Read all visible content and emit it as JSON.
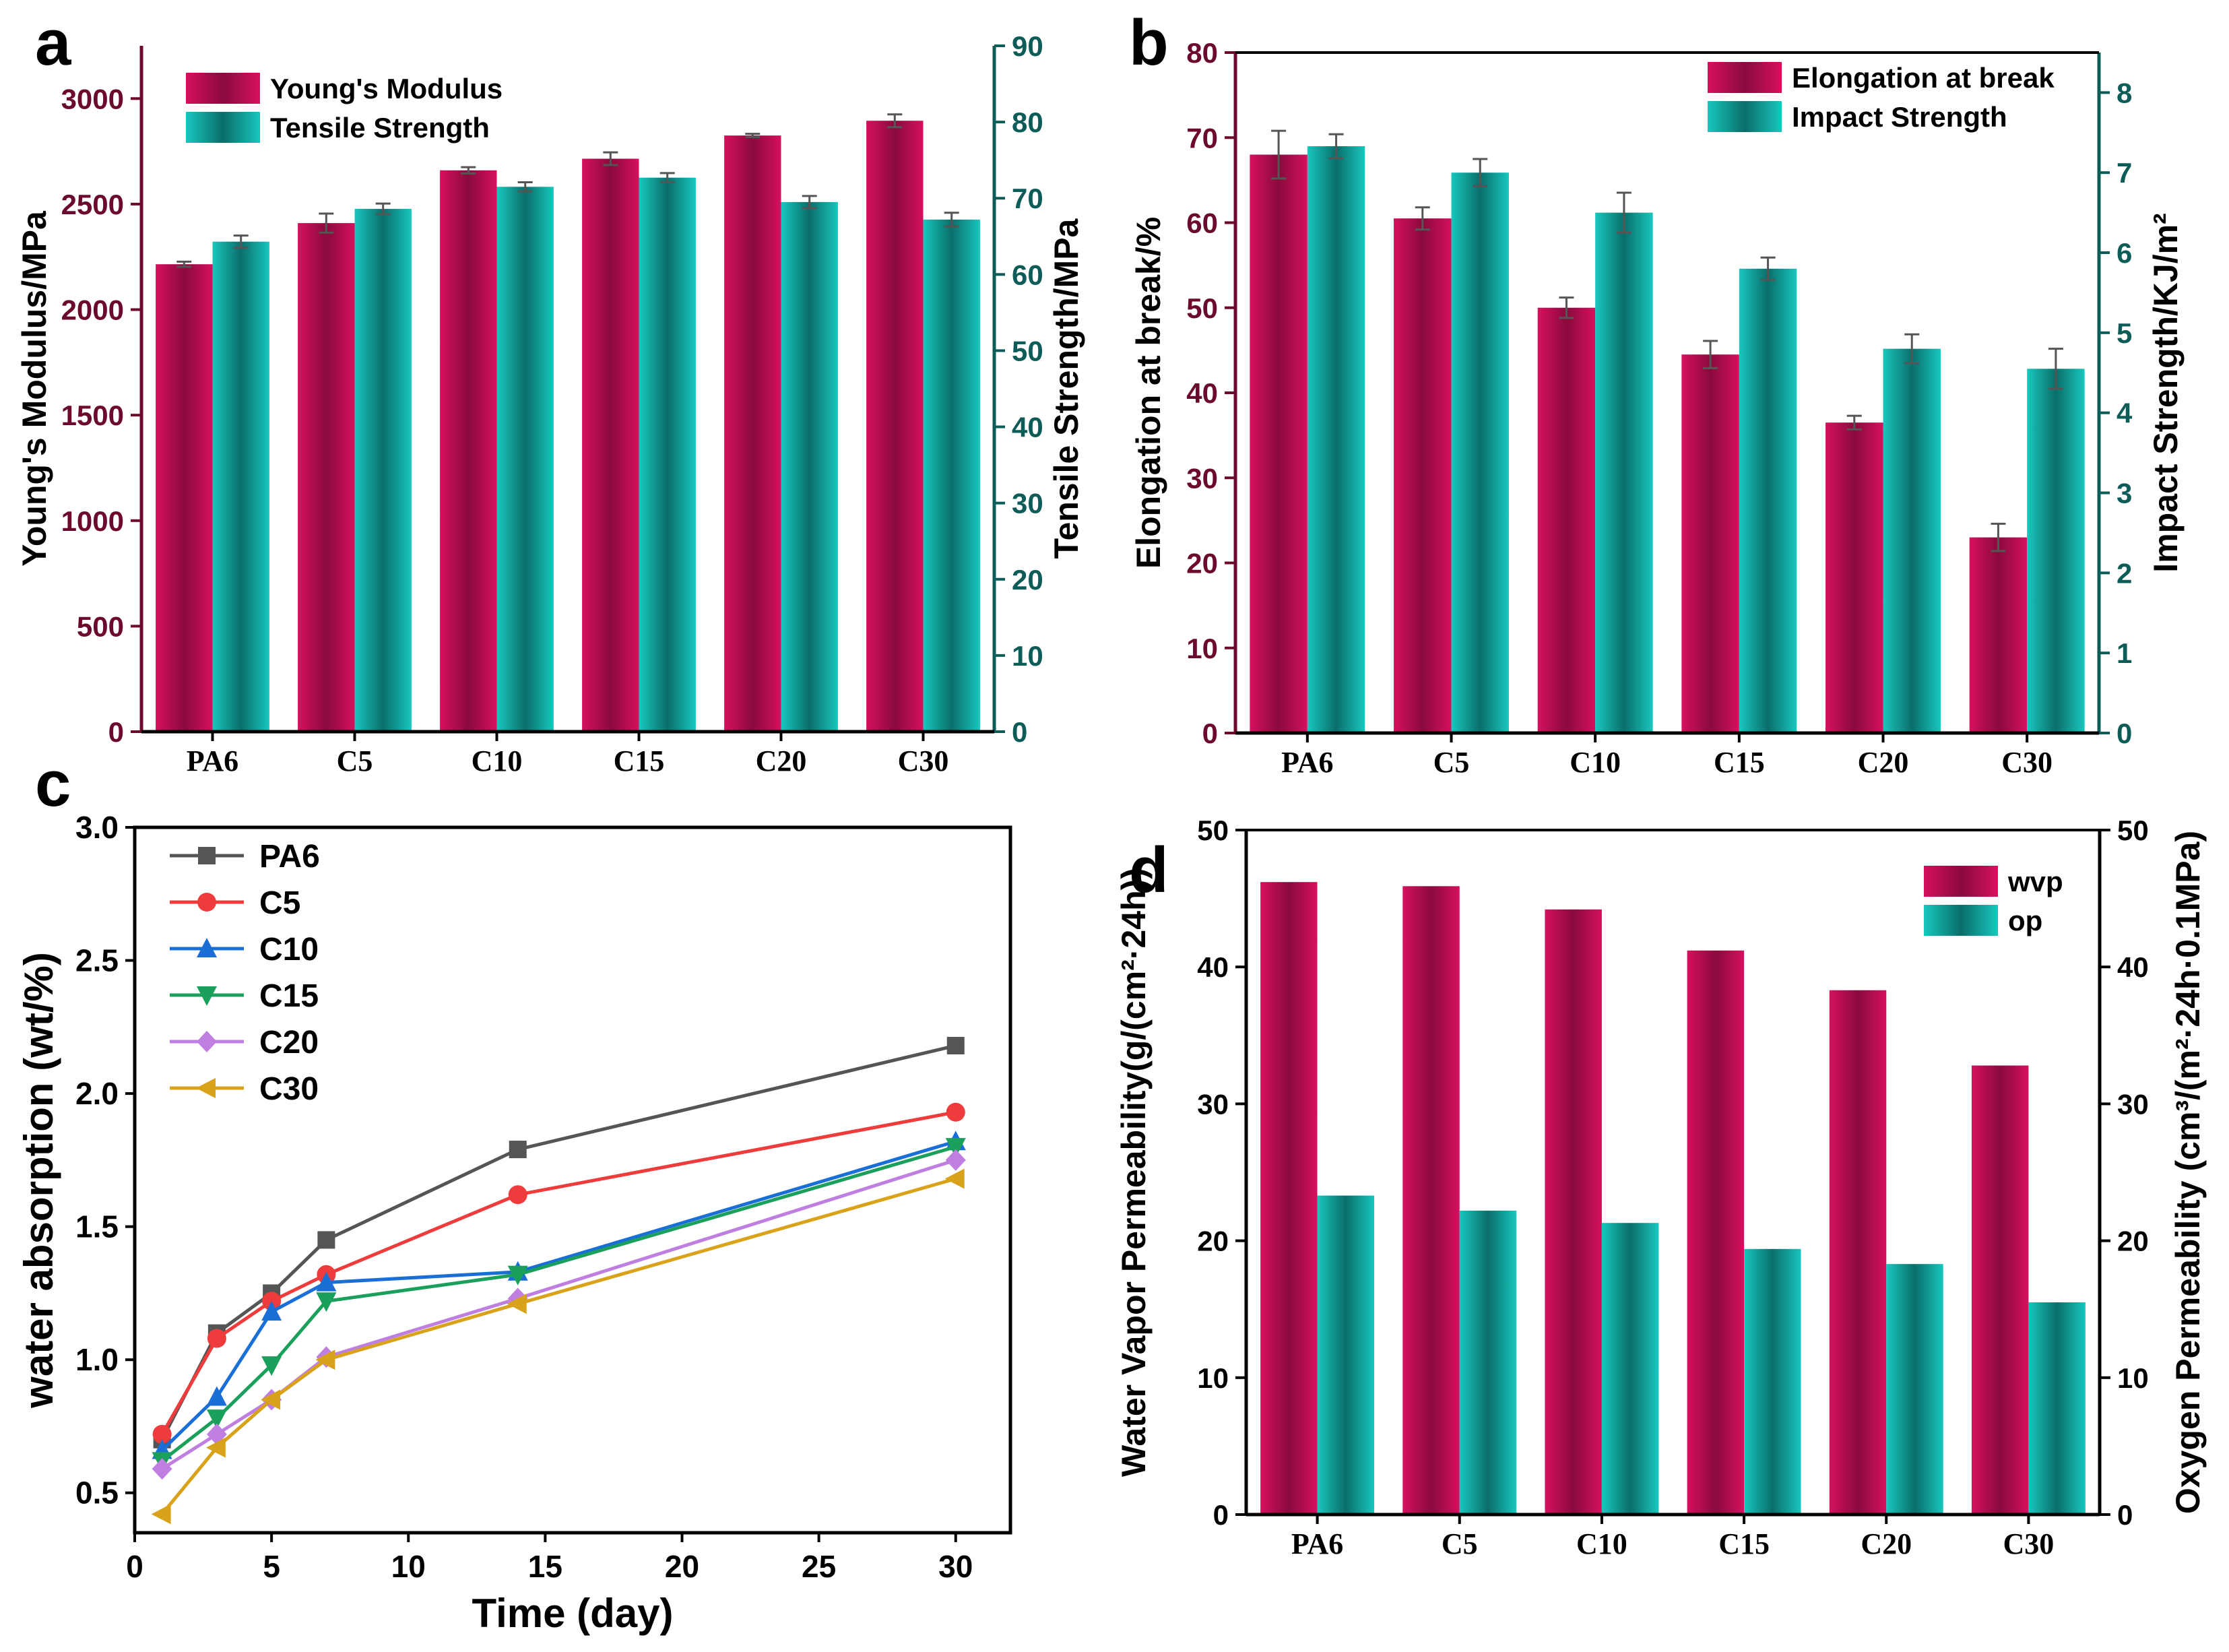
{
  "colors": {
    "magenta": "#D6105E",
    "magenta_dark": "#8A0A3C",
    "teal": "#18C7BE",
    "teal_dark": "#0A6E6A",
    "axis_a_left": "#6B0A2E",
    "axis_a_right": "#0E5C58",
    "axis_b_left": "#6B0A2E",
    "axis_b_right": "#0E5C58",
    "line_colors": [
      "#555555",
      "#EE3B3B",
      "#1A6FD6",
      "#1AA05A",
      "#BF7FE0",
      "#D9A21B"
    ]
  },
  "chart_data": [
    {
      "panel": "a",
      "type": "bar",
      "categories": [
        "PA6",
        "C5",
        "C10",
        "C15",
        "C20",
        "C30"
      ],
      "ylabel": "Young's Modulus/MPa",
      "y2label": "Tensile Strength/MPa",
      "ylim": [
        0,
        3250
      ],
      "y2lim": [
        0,
        90
      ],
      "yticks": [
        0,
        500,
        1000,
        1500,
        2000,
        2500,
        3000
      ],
      "y2ticks": [
        0,
        10,
        20,
        30,
        40,
        50,
        60,
        70,
        80,
        90
      ],
      "series": [
        {
          "name": "Young's Modulus",
          "axis": "left",
          "values": [
            2215,
            2410,
            2660,
            2715,
            2825,
            2895
          ],
          "errors": [
            12,
            45,
            15,
            30,
            8,
            30
          ]
        },
        {
          "name": "Tensile Strength",
          "axis": "right",
          "values": [
            64.3,
            68.6,
            71.5,
            72.7,
            69.5,
            67.2
          ],
          "errors": [
            0.8,
            0.7,
            0.6,
            0.6,
            0.8,
            0.9
          ]
        }
      ]
    },
    {
      "panel": "b",
      "type": "bar",
      "categories": [
        "PA6",
        "C5",
        "C10",
        "C15",
        "C20",
        "C30"
      ],
      "ylabel": "Elongation at break/%",
      "y2label": "Impact Strength/KJ/m²",
      "ylim": [
        0,
        80
      ],
      "y2lim": [
        0,
        8.5
      ],
      "yticks": [
        0,
        10,
        20,
        30,
        40,
        50,
        60,
        70,
        80
      ],
      "y2ticks": [
        0,
        1,
        2,
        3,
        4,
        5,
        6,
        7,
        8
      ],
      "series": [
        {
          "name": "Elongation at break",
          "axis": "left",
          "values": [
            68,
            60.5,
            50,
            44.5,
            36.5,
            23
          ],
          "errors": [
            2.8,
            1.3,
            1.2,
            1.6,
            0.8,
            1.6
          ]
        },
        {
          "name": "Impact Strength",
          "axis": "right",
          "values": [
            7.33,
            7.0,
            6.5,
            5.8,
            4.8,
            4.55
          ],
          "errors": [
            0.15,
            0.17,
            0.25,
            0.14,
            0.18,
            0.25
          ]
        }
      ]
    },
    {
      "panel": "c",
      "type": "line",
      "title": "",
      "xlabel": "Time (day)",
      "ylabel": "water absorption (wt/%)",
      "xlim": [
        0,
        32
      ],
      "ylim": [
        0.35,
        3.0
      ],
      "xticks": [
        0,
        5,
        10,
        15,
        20,
        25,
        30
      ],
      "yticks": [
        0.5,
        1.0,
        1.5,
        2.0,
        2.5,
        3.0
      ],
      "x": [
        1,
        3,
        5,
        7,
        14,
        30
      ],
      "series": [
        {
          "name": "PA6",
          "marker": "square",
          "values": [
            0.7,
            1.1,
            1.25,
            1.45,
            1.79,
            2.18
          ]
        },
        {
          "name": "C5",
          "marker": "circle",
          "values": [
            0.72,
            1.08,
            1.22,
            1.32,
            1.62,
            1.93
          ]
        },
        {
          "name": "C10",
          "marker": "triangle-up",
          "values": [
            0.66,
            0.86,
            1.18,
            1.29,
            1.33,
            1.82
          ]
        },
        {
          "name": "C15",
          "marker": "triangle-down",
          "values": [
            0.62,
            0.78,
            0.98,
            1.22,
            1.32,
            1.8
          ]
        },
        {
          "name": "C20",
          "marker": "diamond",
          "values": [
            0.59,
            0.72,
            0.85,
            1.01,
            1.23,
            1.75
          ]
        },
        {
          "name": "C30",
          "marker": "triangle-left",
          "values": [
            0.42,
            0.67,
            0.85,
            1.0,
            1.21,
            1.68
          ]
        }
      ]
    },
    {
      "panel": "d",
      "type": "bar",
      "categories": [
        "PA6",
        "C5",
        "C10",
        "C15",
        "C20",
        "C30"
      ],
      "ylabel": "Water Vapor Permeability(g/(cm²·24h))",
      "y2label": "Oxygen Permeability (cm³/(m²·24h·0.1MPa)",
      "ylim": [
        0,
        50
      ],
      "y2lim": [
        0,
        50
      ],
      "yticks": [
        0,
        10,
        20,
        30,
        40,
        50
      ],
      "y2ticks": [
        0,
        10,
        20,
        30,
        40,
        50
      ],
      "series": [
        {
          "name": "wvp",
          "axis": "left",
          "values": [
            46.2,
            45.9,
            44.2,
            41.2,
            38.3,
            32.8
          ]
        },
        {
          "name": "op",
          "axis": "right",
          "values": [
            23.3,
            22.2,
            21.3,
            19.4,
            18.3,
            15.5
          ]
        }
      ]
    }
  ],
  "panels": {
    "a": {
      "letter": "a",
      "legend": [
        "Young's Modulus",
        "Tensile Strength"
      ]
    },
    "b": {
      "letter": "b",
      "legend": [
        "Elongation at break",
        "Impact Strength"
      ]
    },
    "c": {
      "letter": "c",
      "legend": [
        "PA6",
        "C5",
        "C10",
        "C15",
        "C20",
        "C30"
      ]
    },
    "d": {
      "letter": "d",
      "legend": [
        "wvp",
        "op"
      ]
    }
  }
}
